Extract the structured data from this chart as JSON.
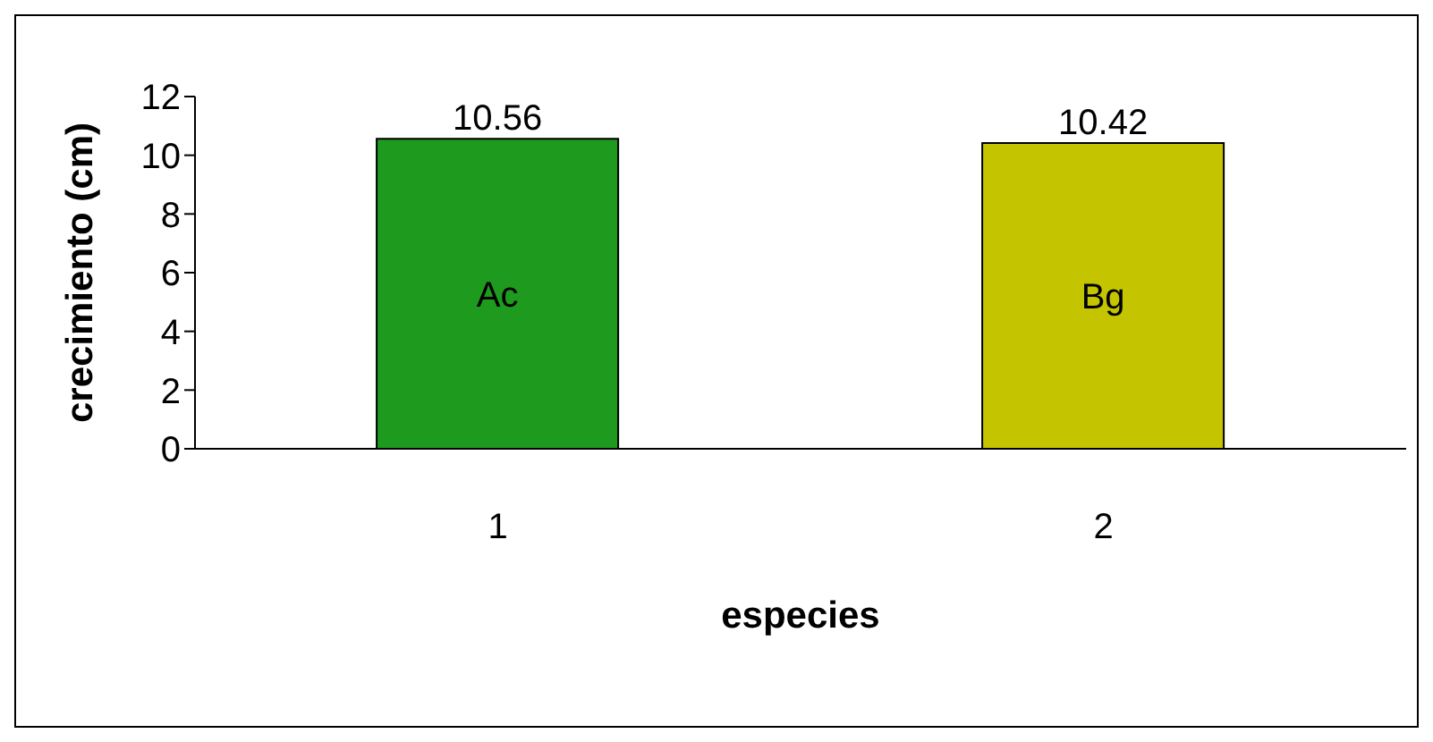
{
  "chart_data": {
    "type": "bar",
    "xlabel": "especies",
    "ylabel": "crecimiento (cm)",
    "categories": [
      "1",
      "2"
    ],
    "values": [
      10.56,
      10.42
    ],
    "colors": [
      "#1e9a1e",
      "#c4c400"
    ],
    "ylim": [
      0,
      12
    ],
    "yticks": [
      0,
      2,
      4,
      6,
      8,
      10,
      12
    ],
    "data_labels": true,
    "grid": false,
    "legend": false,
    "annotations": [
      "Ac",
      "Bg"
    ]
  }
}
